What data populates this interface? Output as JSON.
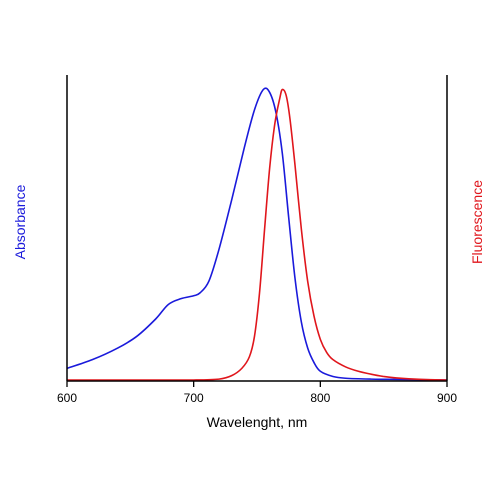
{
  "chart_data": {
    "type": "line",
    "xlabel": "Wavelenght, nm",
    "ylabel_left": "Absorbance",
    "ylabel_right": "Fluorescence",
    "xlim": [
      600,
      900
    ],
    "ylim": [
      0,
      1.05
    ],
    "x_ticks": [
      600,
      700,
      800,
      900
    ],
    "x_tick_labels": [
      "600",
      "700",
      "800",
      "900"
    ],
    "grid": false,
    "y_ticks_shown": false,
    "colors": {
      "absorbance": "#1a1adb",
      "fluorescence": "#e0161c",
      "axis": "#000000"
    },
    "series": [
      {
        "name": "Absorbance",
        "axis": "left",
        "x": [
          600,
          620,
          640,
          655,
          670,
          680,
          690,
          700,
          705,
          712,
          720,
          730,
          740,
          748,
          755,
          760,
          765,
          770,
          775,
          780,
          785,
          790,
          795,
          800,
          810,
          820,
          840,
          860,
          880,
          900
        ],
        "y": [
          0.04,
          0.07,
          0.11,
          0.15,
          0.21,
          0.26,
          0.28,
          0.29,
          0.3,
          0.34,
          0.45,
          0.62,
          0.8,
          0.93,
          1.0,
          0.99,
          0.92,
          0.78,
          0.56,
          0.35,
          0.2,
          0.11,
          0.06,
          0.03,
          0.012,
          0.006,
          0.003,
          0.002,
          0.001,
          0.0
        ]
      },
      {
        "name": "Fluorescence",
        "axis": "right",
        "x": [
          600,
          650,
          700,
          720,
          730,
          738,
          744,
          748,
          752,
          756,
          760,
          764,
          768,
          770,
          773,
          776,
          780,
          785,
          790,
          795,
          800,
          805,
          810,
          820,
          830,
          840,
          850,
          860,
          880,
          900
        ],
        "y": [
          0.0,
          0.0,
          0.0,
          0.003,
          0.015,
          0.04,
          0.08,
          0.15,
          0.3,
          0.52,
          0.73,
          0.88,
          0.97,
          1.0,
          0.98,
          0.9,
          0.74,
          0.52,
          0.34,
          0.22,
          0.14,
          0.095,
          0.07,
          0.045,
          0.03,
          0.02,
          0.012,
          0.007,
          0.002,
          0.0
        ]
      }
    ]
  }
}
